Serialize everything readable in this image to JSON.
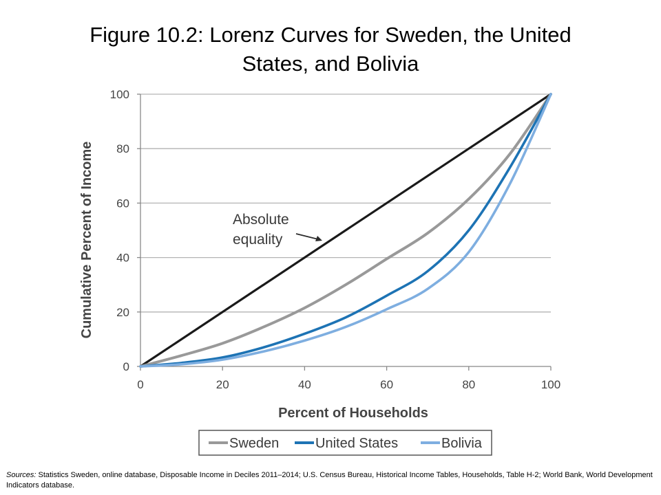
{
  "title_lines": [
    "Figure 10.2: Lorenz Curves for Sweden, the United",
    "States, and Bolivia"
  ],
  "sources": {
    "lead": "Sources:",
    "text": " Statistics Sweden, online database, Disposable Income in Deciles 2011–2014;  U.S. Census Bureau, Historical Income Tables, Households, Table H-2; World Bank, World Development Indicators database."
  },
  "annotation": {
    "lines": [
      "Absolute",
      "equality"
    ]
  },
  "colors": {
    "equality": "#1a1a1a",
    "sweden": "#999999",
    "united_states": "#1d73b4",
    "bolivia": "#7eaee0",
    "grid": "#b3b3b3",
    "axis": "#888888"
  },
  "chart_data": {
    "type": "line",
    "xlabel": "Percent of Households",
    "ylabel": "Cumulative Percent of Income",
    "xlim": [
      0,
      100
    ],
    "ylim": [
      0,
      100
    ],
    "xticks": [
      0,
      20,
      40,
      60,
      80,
      100
    ],
    "yticks": [
      0,
      20,
      40,
      60,
      80,
      100
    ],
    "grid": "horizontal",
    "legend_position": "bottom",
    "series": [
      {
        "key": "equality",
        "legend": false,
        "points": [
          [
            0,
            0
          ],
          [
            100,
            100
          ]
        ]
      },
      {
        "key": "sweden",
        "name": "Sweden",
        "points": [
          [
            0,
            0
          ],
          [
            10,
            4
          ],
          [
            20,
            8.5
          ],
          [
            30,
            14.5
          ],
          [
            40,
            21.5
          ],
          [
            50,
            30
          ],
          [
            60,
            39.5
          ],
          [
            70,
            49
          ],
          [
            80,
            61.5
          ],
          [
            90,
            78
          ],
          [
            100,
            100
          ]
        ]
      },
      {
        "key": "united_states",
        "name": "United States",
        "points": [
          [
            0,
            0
          ],
          [
            10,
            1.3
          ],
          [
            20,
            3.3
          ],
          [
            30,
            7
          ],
          [
            40,
            12
          ],
          [
            50,
            18
          ],
          [
            60,
            26
          ],
          [
            70,
            35
          ],
          [
            80,
            50
          ],
          [
            90,
            73
          ],
          [
            100,
            100
          ]
        ]
      },
      {
        "key": "bolivia",
        "name": "Bolivia",
        "points": [
          [
            0,
            0
          ],
          [
            10,
            0.8
          ],
          [
            20,
            2.5
          ],
          [
            30,
            5.5
          ],
          [
            40,
            9.5
          ],
          [
            50,
            14.5
          ],
          [
            60,
            21
          ],
          [
            70,
            28.5
          ],
          [
            80,
            42
          ],
          [
            90,
            67
          ],
          [
            100,
            100
          ]
        ]
      }
    ]
  }
}
